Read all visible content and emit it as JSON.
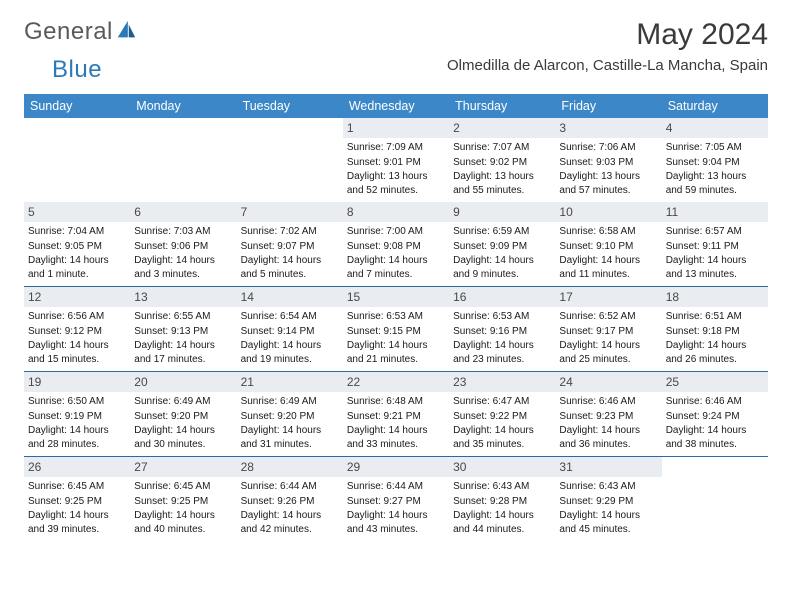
{
  "brand": {
    "word1": "General",
    "word2": "Blue"
  },
  "title": "May 2024",
  "location": "Olmedilla de Alarcon, Castille-La Mancha, Spain",
  "colors": {
    "header_bg": "#3b87c8",
    "header_text": "#ffffff",
    "row_divider": "#2a6aa3",
    "daynum_bg": "#e9edf2",
    "daynum_text": "#484848",
    "body_text": "#1a1a1a",
    "title_text": "#3a3a3a",
    "logo_gray": "#5a5a5a",
    "logo_blue": "#2a7ab9",
    "page_bg": "#ffffff"
  },
  "dow": [
    "Sunday",
    "Monday",
    "Tuesday",
    "Wednesday",
    "Thursday",
    "Friday",
    "Saturday"
  ],
  "weeks": [
    [
      {
        "n": "",
        "sr": "",
        "ss": "",
        "dl": ""
      },
      {
        "n": "",
        "sr": "",
        "ss": "",
        "dl": ""
      },
      {
        "n": "",
        "sr": "",
        "ss": "",
        "dl": ""
      },
      {
        "n": "1",
        "sr": "Sunrise: 7:09 AM",
        "ss": "Sunset: 9:01 PM",
        "dl": "Daylight: 13 hours and 52 minutes."
      },
      {
        "n": "2",
        "sr": "Sunrise: 7:07 AM",
        "ss": "Sunset: 9:02 PM",
        "dl": "Daylight: 13 hours and 55 minutes."
      },
      {
        "n": "3",
        "sr": "Sunrise: 7:06 AM",
        "ss": "Sunset: 9:03 PM",
        "dl": "Daylight: 13 hours and 57 minutes."
      },
      {
        "n": "4",
        "sr": "Sunrise: 7:05 AM",
        "ss": "Sunset: 9:04 PM",
        "dl": "Daylight: 13 hours and 59 minutes."
      }
    ],
    [
      {
        "n": "5",
        "sr": "Sunrise: 7:04 AM",
        "ss": "Sunset: 9:05 PM",
        "dl": "Daylight: 14 hours and 1 minute."
      },
      {
        "n": "6",
        "sr": "Sunrise: 7:03 AM",
        "ss": "Sunset: 9:06 PM",
        "dl": "Daylight: 14 hours and 3 minutes."
      },
      {
        "n": "7",
        "sr": "Sunrise: 7:02 AM",
        "ss": "Sunset: 9:07 PM",
        "dl": "Daylight: 14 hours and 5 minutes."
      },
      {
        "n": "8",
        "sr": "Sunrise: 7:00 AM",
        "ss": "Sunset: 9:08 PM",
        "dl": "Daylight: 14 hours and 7 minutes."
      },
      {
        "n": "9",
        "sr": "Sunrise: 6:59 AM",
        "ss": "Sunset: 9:09 PM",
        "dl": "Daylight: 14 hours and 9 minutes."
      },
      {
        "n": "10",
        "sr": "Sunrise: 6:58 AM",
        "ss": "Sunset: 9:10 PM",
        "dl": "Daylight: 14 hours and 11 minutes."
      },
      {
        "n": "11",
        "sr": "Sunrise: 6:57 AM",
        "ss": "Sunset: 9:11 PM",
        "dl": "Daylight: 14 hours and 13 minutes."
      }
    ],
    [
      {
        "n": "12",
        "sr": "Sunrise: 6:56 AM",
        "ss": "Sunset: 9:12 PM",
        "dl": "Daylight: 14 hours and 15 minutes."
      },
      {
        "n": "13",
        "sr": "Sunrise: 6:55 AM",
        "ss": "Sunset: 9:13 PM",
        "dl": "Daylight: 14 hours and 17 minutes."
      },
      {
        "n": "14",
        "sr": "Sunrise: 6:54 AM",
        "ss": "Sunset: 9:14 PM",
        "dl": "Daylight: 14 hours and 19 minutes."
      },
      {
        "n": "15",
        "sr": "Sunrise: 6:53 AM",
        "ss": "Sunset: 9:15 PM",
        "dl": "Daylight: 14 hours and 21 minutes."
      },
      {
        "n": "16",
        "sr": "Sunrise: 6:53 AM",
        "ss": "Sunset: 9:16 PM",
        "dl": "Daylight: 14 hours and 23 minutes."
      },
      {
        "n": "17",
        "sr": "Sunrise: 6:52 AM",
        "ss": "Sunset: 9:17 PM",
        "dl": "Daylight: 14 hours and 25 minutes."
      },
      {
        "n": "18",
        "sr": "Sunrise: 6:51 AM",
        "ss": "Sunset: 9:18 PM",
        "dl": "Daylight: 14 hours and 26 minutes."
      }
    ],
    [
      {
        "n": "19",
        "sr": "Sunrise: 6:50 AM",
        "ss": "Sunset: 9:19 PM",
        "dl": "Daylight: 14 hours and 28 minutes."
      },
      {
        "n": "20",
        "sr": "Sunrise: 6:49 AM",
        "ss": "Sunset: 9:20 PM",
        "dl": "Daylight: 14 hours and 30 minutes."
      },
      {
        "n": "21",
        "sr": "Sunrise: 6:49 AM",
        "ss": "Sunset: 9:20 PM",
        "dl": "Daylight: 14 hours and 31 minutes."
      },
      {
        "n": "22",
        "sr": "Sunrise: 6:48 AM",
        "ss": "Sunset: 9:21 PM",
        "dl": "Daylight: 14 hours and 33 minutes."
      },
      {
        "n": "23",
        "sr": "Sunrise: 6:47 AM",
        "ss": "Sunset: 9:22 PM",
        "dl": "Daylight: 14 hours and 35 minutes."
      },
      {
        "n": "24",
        "sr": "Sunrise: 6:46 AM",
        "ss": "Sunset: 9:23 PM",
        "dl": "Daylight: 14 hours and 36 minutes."
      },
      {
        "n": "25",
        "sr": "Sunrise: 6:46 AM",
        "ss": "Sunset: 9:24 PM",
        "dl": "Daylight: 14 hours and 38 minutes."
      }
    ],
    [
      {
        "n": "26",
        "sr": "Sunrise: 6:45 AM",
        "ss": "Sunset: 9:25 PM",
        "dl": "Daylight: 14 hours and 39 minutes."
      },
      {
        "n": "27",
        "sr": "Sunrise: 6:45 AM",
        "ss": "Sunset: 9:25 PM",
        "dl": "Daylight: 14 hours and 40 minutes."
      },
      {
        "n": "28",
        "sr": "Sunrise: 6:44 AM",
        "ss": "Sunset: 9:26 PM",
        "dl": "Daylight: 14 hours and 42 minutes."
      },
      {
        "n": "29",
        "sr": "Sunrise: 6:44 AM",
        "ss": "Sunset: 9:27 PM",
        "dl": "Daylight: 14 hours and 43 minutes."
      },
      {
        "n": "30",
        "sr": "Sunrise: 6:43 AM",
        "ss": "Sunset: 9:28 PM",
        "dl": "Daylight: 14 hours and 44 minutes."
      },
      {
        "n": "31",
        "sr": "Sunrise: 6:43 AM",
        "ss": "Sunset: 9:29 PM",
        "dl": "Daylight: 14 hours and 45 minutes."
      },
      {
        "n": "",
        "sr": "",
        "ss": "",
        "dl": ""
      }
    ]
  ]
}
